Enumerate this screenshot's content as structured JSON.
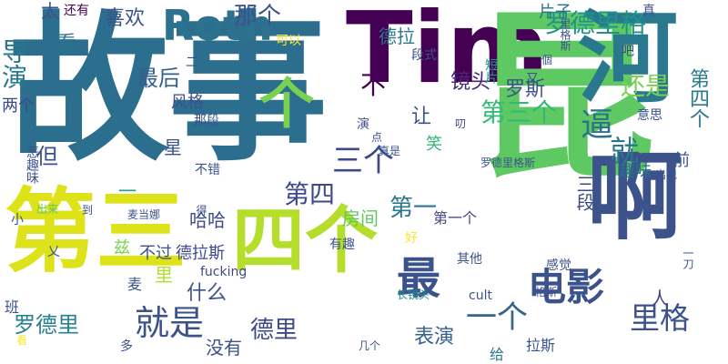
{
  "wordcloud": {
    "words": [
      {
        "text": "故事",
        "color": "#2c6e8e",
        "vertical": false
      },
      {
        "text": "Tim",
        "color": "#440154",
        "vertical": false
      },
      {
        "text": "昆",
        "color": "#5ec962",
        "vertical": false
      },
      {
        "text": "第三",
        "color": "#dde318",
        "vertical": false
      },
      {
        "text": "四个",
        "color": "#b5de2b",
        "vertical": false
      },
      {
        "text": "啊",
        "color": "#3b528b",
        "vertical": false
      },
      {
        "text": "河",
        "color": "#2a788e",
        "vertical": true
      },
      {
        "text": "Roth",
        "color": "#2c728e",
        "vertical": false
      },
      {
        "text": "电影",
        "color": "#3b528b",
        "vertical": false
      },
      {
        "text": "个",
        "color": "#7ad151",
        "vertical": false
      },
      {
        "text": "导演",
        "color": "#2a788e",
        "vertical": true
      },
      {
        "text": "太",
        "color": "#3b528b",
        "vertical": false
      },
      {
        "text": "那个",
        "color": "#3b528b",
        "vertical": false
      },
      {
        "text": "罗德里格",
        "color": "#21918c",
        "vertical": false
      },
      {
        "text": "逼",
        "color": "#2c728e",
        "vertical": false
      },
      {
        "text": "第三个",
        "color": "#35b779",
        "vertical": false
      },
      {
        "text": "一个",
        "color": "#32648e",
        "vertical": false
      },
      {
        "text": "最",
        "color": "#3b528b",
        "vertical": false
      },
      {
        "text": "三个",
        "color": "#3e4989",
        "vertical": false
      },
      {
        "text": "就是",
        "color": "#3b528b",
        "vertical": false
      },
      {
        "text": "罗德里",
        "color": "#26828e",
        "vertical": false
      },
      {
        "text": "德里",
        "color": "#3e4989",
        "vertical": false
      },
      {
        "text": "里格",
        "color": "#3b528b",
        "vertical": false
      },
      {
        "text": "表演",
        "color": "#355f8d",
        "vertical": false
      },
      {
        "text": "看",
        "color": "#2c728e",
        "vertical": false
      },
      {
        "text": "还是",
        "color": "#7ad151",
        "vertical": false
      },
      {
        "text": "第四",
        "color": "#3e4989",
        "vertical": false
      },
      {
        "text": "但",
        "color": "#3b528b",
        "vertical": false
      },
      {
        "text": "罗斯",
        "color": "#3b528b",
        "vertical": false
      },
      {
        "text": "最后",
        "color": "#355f8d",
        "vertical": false
      },
      {
        "text": "喜欢",
        "color": "#3b528b",
        "vertical": false
      },
      {
        "text": "第四个",
        "color": "#2a788e",
        "vertical": true
      },
      {
        "text": "镜头",
        "color": "#482878",
        "vertical": false
      },
      {
        "text": "就",
        "color": "#2a788e",
        "vertical": false
      },
      {
        "text": "第一",
        "color": "#2a788e",
        "vertical": false
      },
      {
        "text": "什么",
        "color": "#3b528b",
        "vertical": false
      },
      {
        "text": "房间",
        "color": "#5ec962",
        "vertical": false
      },
      {
        "text": "哈哈",
        "color": "#3e4989",
        "vertical": false
      },
      {
        "text": "不",
        "color": "#440154",
        "vertical": false
      },
      {
        "text": "让",
        "color": "#3b528b",
        "vertical": false
      },
      {
        "text": "星",
        "color": "#3b528b",
        "vertical": false
      },
      {
        "text": "风格",
        "color": "#3b528b",
        "vertical": false
      },
      {
        "text": "德拉",
        "color": "#2a788e",
        "vertical": false
      },
      {
        "text": "片子",
        "color": "#2c728e",
        "vertical": false
      },
      {
        "text": "两个",
        "color": "#3e4989",
        "vertical": false
      },
      {
        "text": "笑",
        "color": "#35b779",
        "vertical": false
      },
      {
        "text": "前",
        "color": "#3b528b",
        "vertical": false
      },
      {
        "text": "三段",
        "color": "#3e4989",
        "vertical": true
      },
      {
        "text": "趣味",
        "color": "#2c728e",
        "vertical": false
      },
      {
        "text": "第一个",
        "color": "#414487",
        "vertical": false
      },
      {
        "text": "德拉斯",
        "color": "#3e4989",
        "vertical": false
      },
      {
        "text": "不过",
        "color": "#3b528b",
        "vertical": false
      },
      {
        "text": "人",
        "color": "#3e4989",
        "vertical": false
      },
      {
        "text": "没有",
        "color": "#3b528b",
        "vertical": false
      },
      {
        "text": "给",
        "color": "#2a788e",
        "vertical": false
      },
      {
        "text": "拉斯",
        "color": "#3b528b",
        "vertical": false
      },
      {
        "text": "fucking",
        "color": "#3e4989",
        "vertical": false
      },
      {
        "text": "cult",
        "color": "#3b528b",
        "vertical": false
      },
      {
        "text": "可以",
        "color": "#fde725",
        "vertical": false
      },
      {
        "text": "还有",
        "color": "#440154",
        "vertical": false
      },
      {
        "text": "段式",
        "color": "#3b528b",
        "vertical": false
      },
      {
        "text": "真",
        "color": "#3b528b",
        "vertical": false
      },
      {
        "text": "吧",
        "color": "#414487",
        "vertical": true
      },
      {
        "text": "里格斯",
        "color": "#3b528b",
        "vertical": true
      },
      {
        "text": "個",
        "color": "#3b528b",
        "vertical": false
      },
      {
        "text": "短片",
        "color": "#1f9e89",
        "vertical": true
      },
      {
        "text": "又",
        "color": "#3b528b",
        "vertical": false
      },
      {
        "text": "二",
        "color": "#3e4989",
        "vertical": false
      },
      {
        "text": "那段",
        "color": "#3b528b",
        "vertical": false
      },
      {
        "text": "演",
        "color": "#3b528b",
        "vertical": false
      },
      {
        "text": "叨",
        "color": "#3e4989",
        "vertical": false
      },
      {
        "text": "意思",
        "color": "#3b528b",
        "vertical": false
      },
      {
        "text": "点",
        "color": "#3b528b",
        "vertical": false
      },
      {
        "text": "真是",
        "color": "#3b528b",
        "vertical": false
      },
      {
        "text": "恶趣味",
        "color": "#3b528b",
        "vertical": true
      },
      {
        "text": "不错",
        "color": "#3b528b",
        "vertical": false
      },
      {
        "text": "罗德里格斯",
        "color": "#3b528b",
        "vertical": false
      },
      {
        "text": "出现",
        "color": "#3b528b",
        "vertical": false
      },
      {
        "text": "一",
        "color": "#1f9e89",
        "vertical": false
      },
      {
        "text": "出来",
        "color": "#5ec962",
        "vertical": false
      },
      {
        "text": "到",
        "color": "#3b528b",
        "vertical": false
      },
      {
        "text": "麦当娜",
        "color": "#3b528b",
        "vertical": false
      },
      {
        "text": "小",
        "color": "#3b528b",
        "vertical": false
      },
      {
        "text": "得",
        "color": "#3b528b",
        "vertical": true
      },
      {
        "text": "兹",
        "color": "#7ad151",
        "vertical": false
      },
      {
        "text": "有趣",
        "color": "#3b528b",
        "vertical": false
      },
      {
        "text": "好",
        "color": "#fde725",
        "vertical": false
      },
      {
        "text": "其他",
        "color": "#3b528b",
        "vertical": false
      },
      {
        "text": "感觉",
        "color": "#3b528b",
        "vertical": false
      },
      {
        "text": "一刀",
        "color": "#3b528b",
        "vertical": true
      },
      {
        "text": "麦",
        "color": "#3b528b",
        "vertical": false
      },
      {
        "text": "长镜头",
        "color": "#21918c",
        "vertical": false
      },
      {
        "text": "格斯",
        "color": "#3b528b",
        "vertical": false
      },
      {
        "text": "班",
        "color": "#3b528b",
        "vertical": false
      },
      {
        "text": "看",
        "color": "#fde725",
        "vertical": false
      },
      {
        "text": "多",
        "color": "#3b528b",
        "vertical": false
      },
      {
        "text": "几个",
        "color": "#3b528b",
        "vertical": false
      },
      {
        "text": "里",
        "color": "#b5de2b",
        "vertical": false
      },
      {
        "text": "乂",
        "color": "#3b528b",
        "vertical": false
      }
    ]
  }
}
